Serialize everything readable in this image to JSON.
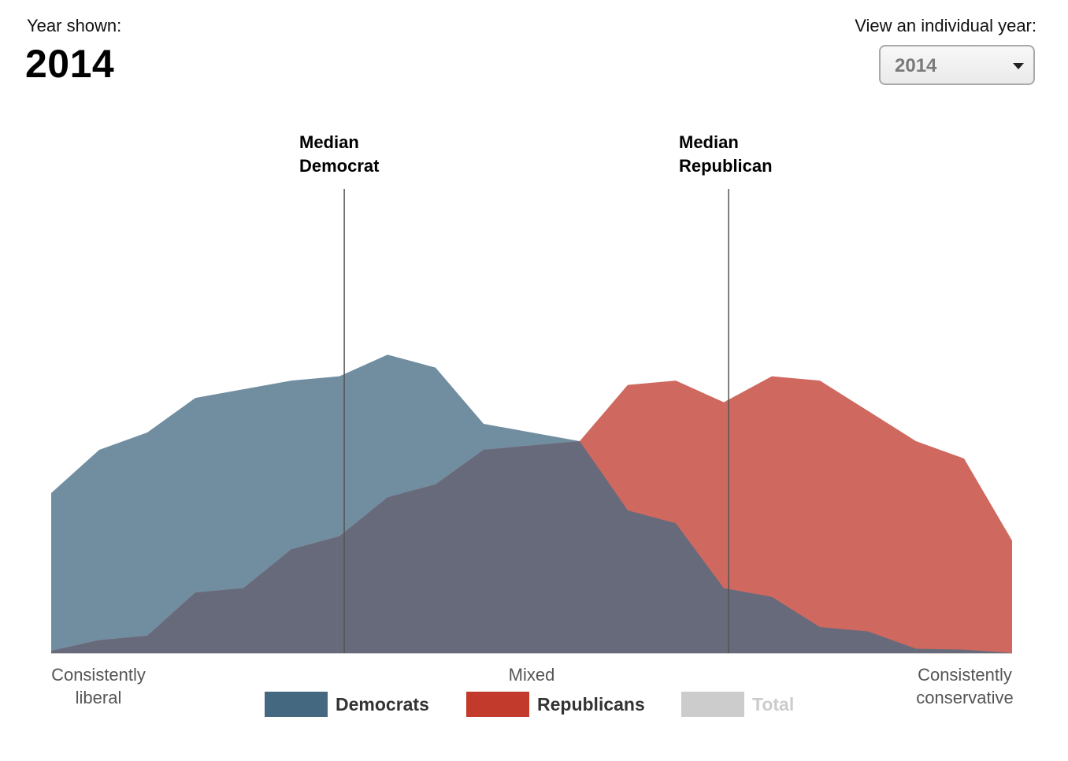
{
  "header": {
    "year_label": "Year shown:",
    "year_value": "2014",
    "view_label": "View an individual year:",
    "select_value": "2014",
    "select_icon": "caret-down-icon"
  },
  "medians": {
    "democrat": [
      "Median",
      "Democrat"
    ],
    "republican": [
      "Median",
      "Republican"
    ]
  },
  "axis": {
    "left": [
      "Consistently",
      "liberal"
    ],
    "center": "Mixed",
    "right": [
      "Consistently",
      "conservative"
    ]
  },
  "legend": [
    {
      "label": "Democrats",
      "color": "#44687f",
      "text_color": "#333333"
    },
    {
      "label": "Republicans",
      "color": "#c23a2c",
      "text_color": "#333333"
    },
    {
      "label": "Total",
      "color": "#cccccc",
      "text_color": "#cccccc"
    }
  ],
  "colors": {
    "democrats_fill": "#718ea1",
    "republicans_fill": "#cf695f",
    "overlap_fill": "#676a7b",
    "median_line": "#555555",
    "baseline": "#cccccc"
  },
  "chart_data": {
    "type": "area",
    "x_range": [
      -10,
      10
    ],
    "y_range": [
      0,
      1
    ],
    "x": [
      -10,
      -9,
      -8,
      -7,
      -6,
      -5,
      -4,
      -3,
      -2,
      -1,
      0,
      1,
      2,
      3,
      4,
      5,
      6,
      7,
      8,
      9,
      10
    ],
    "series": [
      {
        "name": "Democrats",
        "values": [
          0.37,
          0.47,
          0.51,
          0.59,
          0.61,
          0.63,
          0.64,
          0.69,
          0.66,
          0.53,
          0.51,
          0.49,
          0.33,
          0.3,
          0.15,
          0.13,
          0.06,
          0.05,
          0.01,
          0.008,
          0.0
        ]
      },
      {
        "name": "Republicans",
        "values": [
          0.005,
          0.03,
          0.04,
          0.14,
          0.15,
          0.24,
          0.27,
          0.36,
          0.39,
          0.47,
          0.48,
          0.49,
          0.62,
          0.63,
          0.58,
          0.64,
          0.63,
          0.56,
          0.49,
          0.45,
          0.26
        ]
      }
    ],
    "medians": {
      "democrat": -3.9,
      "republican": 4.1
    }
  }
}
